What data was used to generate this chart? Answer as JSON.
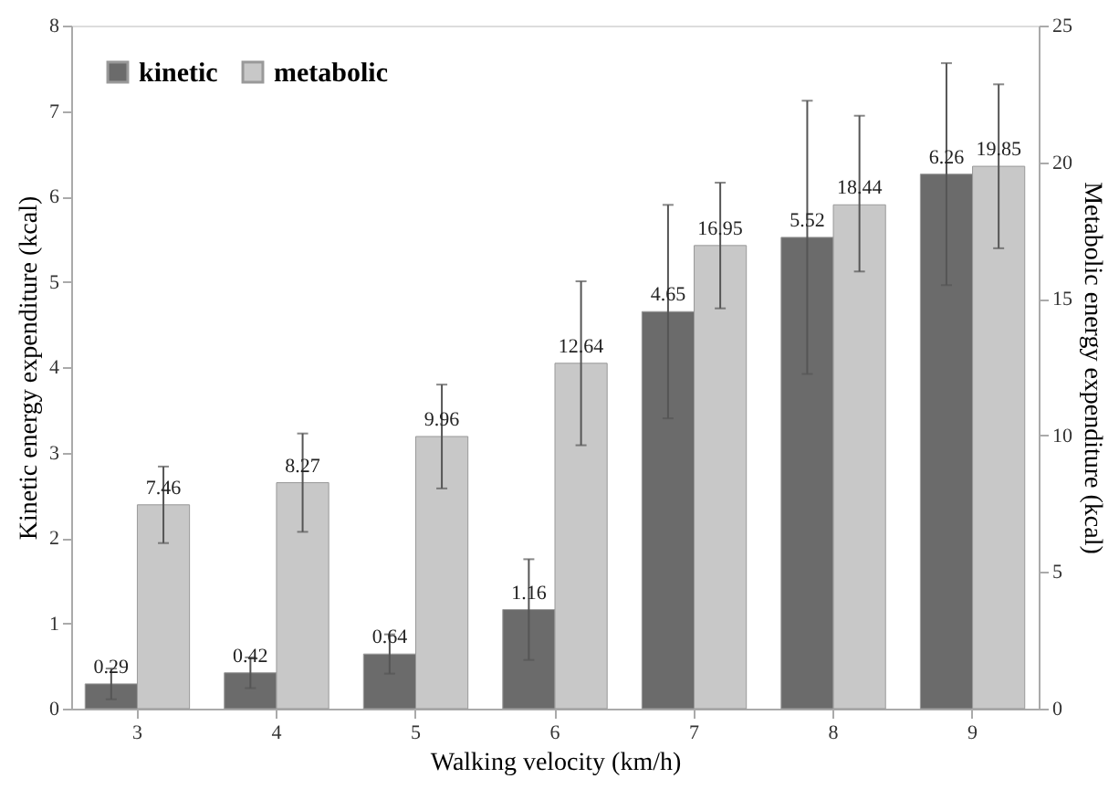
{
  "chart_data": {
    "type": "bar",
    "xlabel": "Walking velocity (km/h)",
    "ylabel": "Kinetic energy expenditure (kcal)",
    "y2label": "Metabolic energy expenditure (kcal)",
    "categories": [
      "3",
      "4",
      "5",
      "6",
      "7",
      "8",
      "9"
    ],
    "series": [
      {
        "name": "kinetic",
        "color": "#6b6b6b",
        "values": [
          0.29,
          0.42,
          0.64,
          1.16,
          4.65,
          5.52,
          6.26
        ],
        "errors": [
          0.18,
          0.18,
          0.23,
          0.59,
          1.25,
          1.6,
          1.3
        ]
      },
      {
        "name": "metabolic",
        "color": "#c8c8c8",
        "axis": "y2",
        "values": [
          7.46,
          8.27,
          9.96,
          12.64,
          16.95,
          18.44,
          19.85
        ],
        "errors": [
          1.4,
          1.8,
          1.9,
          3.0,
          2.3,
          [
            16.0,
            21.7
          ],
          3.0
        ]
      }
    ],
    "ylim": [
      0,
      8
    ],
    "yticks": [
      0,
      1,
      2,
      3,
      4,
      5,
      6,
      7,
      8
    ],
    "y2lim": [
      0,
      25
    ],
    "y2ticks": [
      0,
      5,
      10,
      15,
      20,
      25
    ],
    "data_labels": true,
    "grid": false,
    "legend": "top left"
  }
}
